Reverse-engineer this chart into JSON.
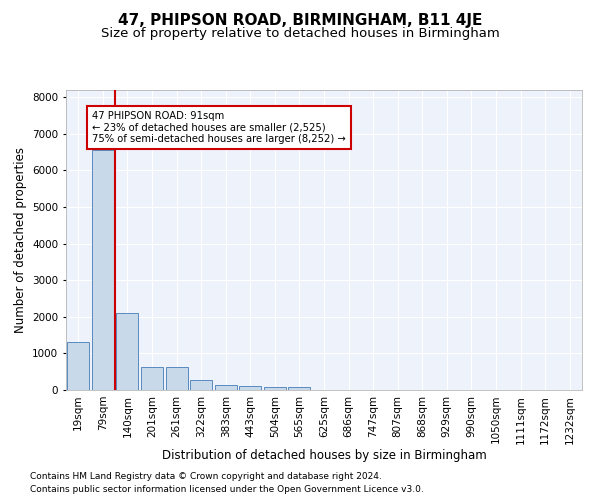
{
  "title1": "47, PHIPSON ROAD, BIRMINGHAM, B11 4JE",
  "title2": "Size of property relative to detached houses in Birmingham",
  "xlabel": "Distribution of detached houses by size in Birmingham",
  "ylabel": "Number of detached properties",
  "footnote1": "Contains HM Land Registry data © Crown copyright and database right 2024.",
  "footnote2": "Contains public sector information licensed under the Open Government Licence v3.0.",
  "bar_labels": [
    "19sqm",
    "79sqm",
    "140sqm",
    "201sqm",
    "261sqm",
    "322sqm",
    "383sqm",
    "443sqm",
    "504sqm",
    "565sqm",
    "625sqm",
    "686sqm",
    "747sqm",
    "807sqm",
    "868sqm",
    "929sqm",
    "990sqm",
    "1050sqm",
    "1111sqm",
    "1172sqm",
    "1232sqm"
  ],
  "bar_values": [
    1300,
    6550,
    2100,
    620,
    620,
    260,
    130,
    110,
    75,
    75,
    0,
    0,
    0,
    0,
    0,
    0,
    0,
    0,
    0,
    0,
    0
  ],
  "bar_color": "#c8d9ea",
  "bar_edge_color": "#5a8abf",
  "vline_x": 1.5,
  "vline_color": "#cc0000",
  "annotation_line1": "47 PHIPSON ROAD: 91sqm",
  "annotation_line2": "← 23% of detached houses are smaller (2,525)",
  "annotation_line3": "75% of semi-detached houses are larger (8,252) →",
  "annotation_box_color": "#cc0000",
  "ylim": [
    0,
    8200
  ],
  "yticks": [
    0,
    1000,
    2000,
    3000,
    4000,
    5000,
    6000,
    7000,
    8000
  ],
  "bg_color": "#eef2fb",
  "grid_color": "#ffffff",
  "title1_fontsize": 11,
  "title2_fontsize": 9.5,
  "axis_label_fontsize": 8.5,
  "tick_fontsize": 7.5,
  "footnote_fontsize": 6.5
}
